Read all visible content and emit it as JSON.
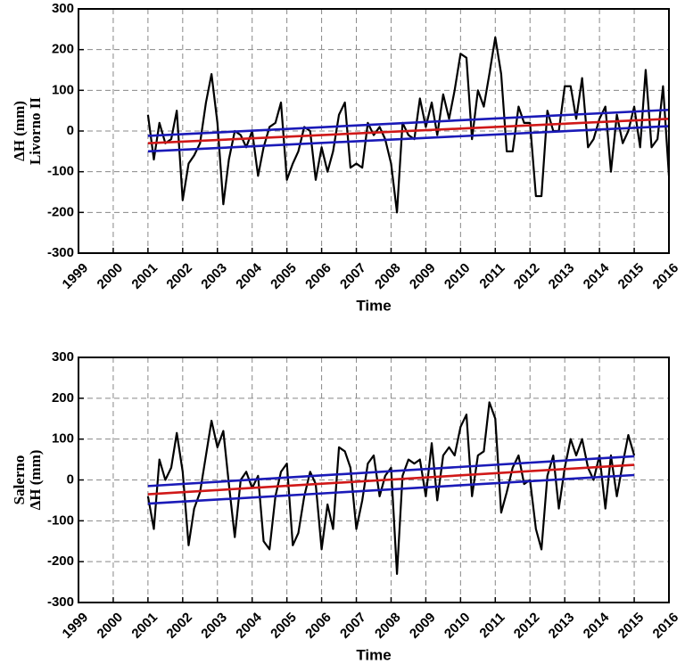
{
  "chart_data": [
    {
      "type": "line",
      "ylabel": [
        "ΔH (mm)",
        "Livorno II"
      ],
      "xlabel": "Time",
      "xlim": [
        1999,
        2016
      ],
      "xticks": [
        1999,
        2000,
        2001,
        2002,
        2003,
        2004,
        2005,
        2006,
        2007,
        2008,
        2009,
        2010,
        2011,
        2012,
        2013,
        2014,
        2015,
        2016
      ],
      "ylim": [
        -300,
        300
      ],
      "yticks": [
        -300,
        -200,
        -100,
        0,
        100,
        200,
        300
      ],
      "grid": true,
      "series": [
        {
          "color": "#000000",
          "x": [
            2001,
            2001.17,
            2001.33,
            2001.5,
            2001.67,
            2001.83,
            2002,
            2002.17,
            2002.33,
            2002.5,
            2002.67,
            2002.83,
            2003,
            2003.17,
            2003.33,
            2003.5,
            2003.67,
            2003.83,
            2004,
            2004.17,
            2004.33,
            2004.5,
            2004.67,
            2004.83,
            2005,
            2005.17,
            2005.33,
            2005.5,
            2005.67,
            2005.83,
            2006,
            2006.17,
            2006.33,
            2006.5,
            2006.67,
            2006.83,
            2007,
            2007.17,
            2007.33,
            2007.5,
            2007.67,
            2007.83,
            2008,
            2008.17,
            2008.33,
            2008.5,
            2008.67,
            2008.83,
            2009,
            2009.17,
            2009.33,
            2009.5,
            2009.67,
            2009.83,
            2010,
            2010.17,
            2010.33,
            2010.5,
            2010.67,
            2010.83,
            2011,
            2011.17,
            2011.33,
            2011.5,
            2011.67,
            2011.83,
            2012,
            2012.17,
            2012.33,
            2012.5,
            2012.67,
            2012.83,
            2013,
            2013.17,
            2013.33,
            2013.5,
            2013.67,
            2013.83,
            2014,
            2014.17,
            2014.33,
            2014.5,
            2014.67,
            2014.83,
            2015,
            2015.17,
            2015.33,
            2015.5,
            2015.67,
            2015.83,
            2016
          ],
          "values": [
            40,
            -70,
            20,
            -30,
            -20,
            50,
            -170,
            -80,
            -60,
            -30,
            70,
            140,
            20,
            -180,
            -70,
            0,
            -10,
            -40,
            0,
            -110,
            -40,
            10,
            20,
            70,
            -120,
            -80,
            -50,
            10,
            0,
            -120,
            -40,
            -100,
            -50,
            40,
            70,
            -90,
            -80,
            -90,
            20,
            -10,
            10,
            -20,
            -80,
            -200,
            20,
            -10,
            -20,
            80,
            10,
            70,
            -10,
            90,
            30,
            100,
            190,
            180,
            -20,
            100,
            60,
            140,
            230,
            140,
            -50,
            -50,
            60,
            20,
            20,
            -160,
            -160,
            50,
            0,
            0,
            110,
            110,
            30,
            130,
            -40,
            -20,
            30,
            60,
            -100,
            40,
            -30,
            0,
            60,
            -40,
            150,
            -40,
            -20,
            110,
            -110
          ]
        },
        {
          "color": "#d01818",
          "x": [
            2001,
            2016
          ],
          "values": [
            -30,
            30
          ]
        },
        {
          "color": "#1a1ab8",
          "x": [
            2001,
            2016
          ],
          "values": [
            -12,
            52
          ]
        },
        {
          "color": "#1a1ab8",
          "x": [
            2001,
            2016
          ],
          "values": [
            -50,
            12
          ]
        }
      ]
    },
    {
      "type": "line",
      "ylabel": [
        "Salerno",
        "ΔH (mm)"
      ],
      "xlabel": "Time",
      "xlim": [
        1999,
        2016
      ],
      "xticks": [
        1999,
        2000,
        2001,
        2002,
        2003,
        2004,
        2005,
        2006,
        2007,
        2008,
        2009,
        2010,
        2011,
        2012,
        2013,
        2014,
        2015,
        2016
      ],
      "ylim": [
        -300,
        300
      ],
      "yticks": [
        -300,
        -200,
        -100,
        0,
        100,
        200,
        300
      ],
      "grid": true,
      "series": [
        {
          "color": "#000000",
          "x": [
            2001,
            2001.17,
            2001.33,
            2001.5,
            2001.67,
            2001.83,
            2002,
            2002.17,
            2002.33,
            2002.5,
            2002.67,
            2002.83,
            2003,
            2003.17,
            2003.33,
            2003.5,
            2003.67,
            2003.83,
            2004,
            2004.17,
            2004.33,
            2004.5,
            2004.67,
            2004.83,
            2005,
            2005.17,
            2005.33,
            2005.5,
            2005.67,
            2005.83,
            2006,
            2006.17,
            2006.33,
            2006.5,
            2006.67,
            2006.83,
            2007,
            2007.17,
            2007.33,
            2007.5,
            2007.67,
            2007.83,
            2008,
            2008.17,
            2008.33,
            2008.5,
            2008.67,
            2008.83,
            2009,
            2009.17,
            2009.33,
            2009.5,
            2009.67,
            2009.83,
            2010,
            2010.17,
            2010.33,
            2010.5,
            2010.67,
            2010.83,
            2011,
            2011.17,
            2011.33,
            2011.5,
            2011.67,
            2011.83,
            2012,
            2012.17,
            2012.33,
            2012.5,
            2012.67,
            2012.83,
            2013,
            2013.17,
            2013.33,
            2013.5,
            2013.67,
            2013.83,
            2014,
            2014.17,
            2014.33,
            2014.5,
            2014.67,
            2014.83,
            2015
          ],
          "values": [
            -40,
            -120,
            50,
            0,
            30,
            115,
            20,
            -160,
            -70,
            -30,
            60,
            145,
            80,
            120,
            -10,
            -140,
            0,
            20,
            -20,
            10,
            -150,
            -170,
            -40,
            20,
            40,
            -160,
            -130,
            -40,
            20,
            -10,
            -170,
            -60,
            -120,
            80,
            70,
            30,
            -120,
            -50,
            40,
            60,
            -40,
            10,
            30,
            -230,
            10,
            50,
            40,
            50,
            -40,
            90,
            -50,
            60,
            80,
            60,
            130,
            160,
            -40,
            60,
            70,
            190,
            150,
            -80,
            -30,
            30,
            60,
            -10,
            0,
            -120,
            -170,
            10,
            60,
            -70,
            30,
            100,
            60,
            100,
            30,
            0,
            60,
            -70,
            60,
            -40,
            40,
            110,
            60
          ]
        },
        {
          "color": "#d01818",
          "x": [
            2001,
            2015
          ],
          "values": [
            -35,
            37
          ]
        },
        {
          "color": "#1a1ab8",
          "x": [
            2001,
            2015
          ],
          "values": [
            -15,
            58
          ]
        },
        {
          "color": "#1a1ab8",
          "x": [
            2001,
            2015
          ],
          "values": [
            -58,
            12
          ]
        }
      ]
    }
  ]
}
